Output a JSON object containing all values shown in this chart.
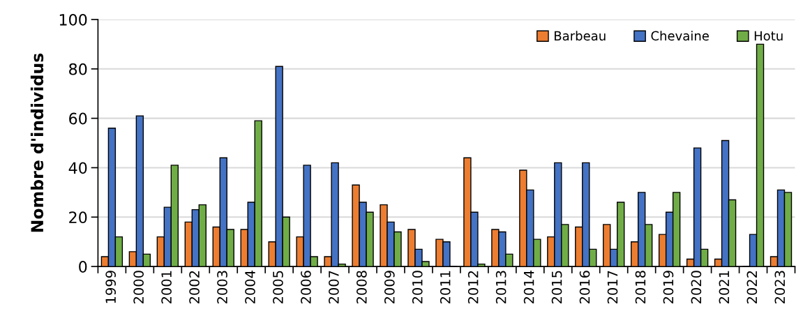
{
  "chart_data": {
    "type": "bar",
    "ylabel": "Nombre d'individus",
    "categories": [
      "1999",
      "2000",
      "2001",
      "2002",
      "2003",
      "2004",
      "2005",
      "2006",
      "2007",
      "2008",
      "2009",
      "2010",
      "2011",
      "2012",
      "2013",
      "2014",
      "2015",
      "2016",
      "2017",
      "2018",
      "2019",
      "2020",
      "2021",
      "2022",
      "2023"
    ],
    "series": [
      {
        "name": "Barbeau",
        "color": "#ed7d31",
        "values": [
          4,
          6,
          12,
          18,
          16,
          15,
          10,
          12,
          4,
          33,
          25,
          15,
          11,
          44,
          15,
          39,
          12,
          16,
          17,
          10,
          13,
          3,
          3,
          0,
          4
        ]
      },
      {
        "name": "Chevaine",
        "color": "#4472c4",
        "values": [
          56,
          61,
          24,
          23,
          44,
          26,
          81,
          41,
          42,
          26,
          18,
          7,
          10,
          22,
          14,
          31,
          42,
          42,
          7,
          30,
          22,
          48,
          51,
          13,
          31
        ]
      },
      {
        "name": "Hotu",
        "color": "#70ad47",
        "values": [
          12,
          5,
          41,
          25,
          15,
          59,
          20,
          4,
          1,
          22,
          14,
          2,
          0,
          1,
          5,
          11,
          17,
          7,
          26,
          17,
          30,
          7,
          27,
          90,
          30
        ]
      }
    ],
    "ylim": [
      0,
      100
    ],
    "yticks": [
      0,
      20,
      40,
      60,
      80,
      100
    ],
    "grid": "y",
    "legend": "top right"
  }
}
